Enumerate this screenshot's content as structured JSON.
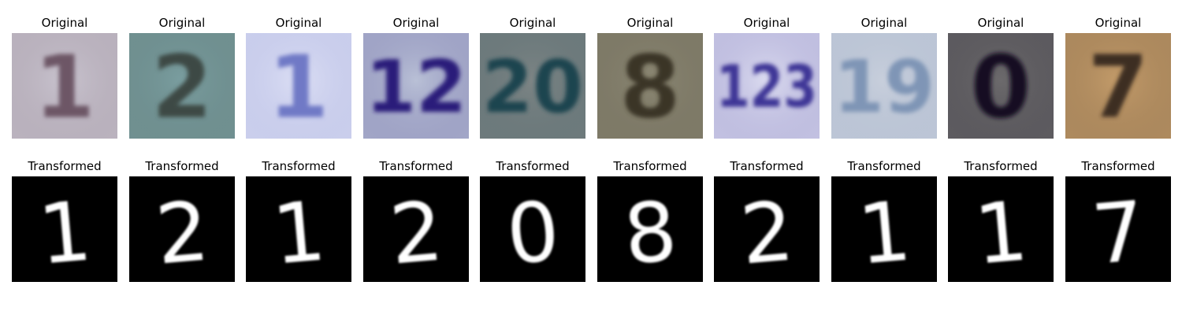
{
  "row_titles": {
    "original": "Original",
    "transformed": "Transformed"
  },
  "originals": [
    {
      "digits": "1",
      "bg": "#c9c4cf",
      "ink": "#6d5766"
    },
    {
      "digits": "2",
      "bg": "#7a9ea0",
      "ink": "#3d4a44"
    },
    {
      "digits": "1",
      "bg": "#dcdff4",
      "ink": "#6f79c6"
    },
    {
      "digits": "12",
      "bg": "#b9c0d6",
      "ink": "#2a1f7a"
    },
    {
      "digits": "20",
      "bg": "#7d8585",
      "ink": "#1e4450"
    },
    {
      "digits": "8",
      "bg": "#8c8874",
      "ink": "#3a3428"
    },
    {
      "digits": "123",
      "bg": "#dcdcf0",
      "ink": "#3d3596"
    },
    {
      "digits": "19",
      "bg": "#c8cfdc",
      "ink": "#7f95b6"
    },
    {
      "digits": "0",
      "bg": "#6c6a6c",
      "ink": "#121020"
    },
    {
      "digits": "7",
      "bg": "#c49c6a",
      "ink": "#3c2e22"
    }
  ],
  "transformed": [
    {
      "digit": "1"
    },
    {
      "digit": "2"
    },
    {
      "digit": "1"
    },
    {
      "digit": "2"
    },
    {
      "digit": "0"
    },
    {
      "digit": "8"
    },
    {
      "digit": "2"
    },
    {
      "digit": "1"
    },
    {
      "digit": "1"
    },
    {
      "digit": "7"
    }
  ],
  "colors": {
    "transformed_bg": "#000000",
    "transformed_ink": "#ffffff"
  }
}
